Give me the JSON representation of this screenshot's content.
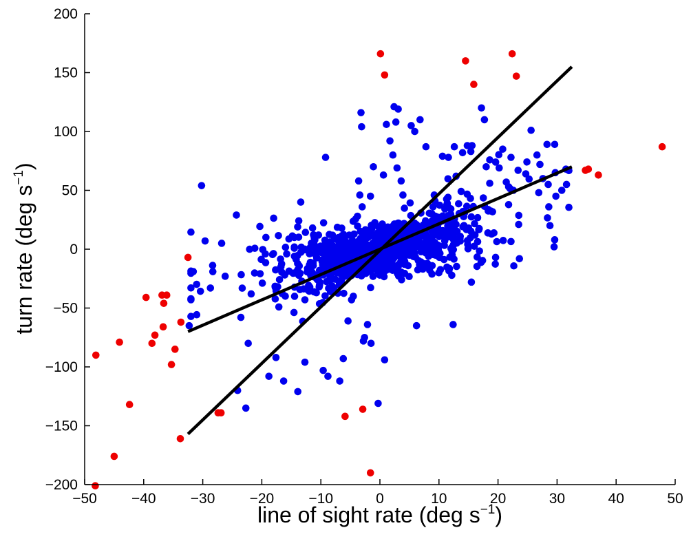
{
  "chart_data": {
    "type": "scatter",
    "title": "",
    "xlabel": {
      "main": "line of sight rate (deg s",
      "superscript": "−1",
      "close": ")"
    },
    "ylabel": {
      "main": "turn rate (deg s",
      "superscript": "−1",
      "close": ")"
    },
    "xlim": [
      -50,
      50
    ],
    "ylim": [
      -200,
      200
    ],
    "x_ticks": [
      -50,
      -40,
      -30,
      -20,
      -10,
      0,
      10,
      20,
      30,
      40,
      50
    ],
    "y_ticks": [
      -200,
      -150,
      -100,
      -50,
      0,
      50,
      100,
      150,
      200
    ],
    "x_tick_labels": [
      "−50",
      "−40",
      "−30",
      "−20",
      "−10",
      "0",
      "10",
      "20",
      "30",
      "40",
      "50"
    ],
    "y_tick_labels": [
      "−200",
      "−150",
      "−100",
      "−50",
      "0",
      "50",
      "100",
      "150",
      "200"
    ],
    "grid": false,
    "colors": {
      "included": "#0000ee",
      "outlier": "#ee0000",
      "fit": "#000000"
    },
    "series": [
      {
        "key": "included",
        "marker": "circle",
        "cluster_model": {
          "count": 1050,
          "core_slope": 1.5,
          "core_spread": [
            7.5,
            8.5
          ],
          "x_range": [
            -32,
            32
          ]
        },
        "points": [
          [
            -30.2,
            54
          ],
          [
            -29.6,
            7
          ],
          [
            -32.3,
            -65
          ],
          [
            -31.6,
            -19
          ],
          [
            -28.7,
            -33
          ],
          [
            -26.8,
            5
          ],
          [
            -26.2,
            -23
          ],
          [
            -24.3,
            29
          ],
          [
            -24.1,
            -120
          ],
          [
            -22.7,
            -135
          ],
          [
            -22.3,
            -80
          ],
          [
            -21.8,
            -38
          ],
          [
            -18.8,
            -108
          ],
          [
            -17.6,
            -92
          ],
          [
            -16.3,
            -112
          ],
          [
            -13.9,
            -121
          ],
          [
            -13.4,
            40
          ],
          [
            -12.7,
            -96
          ],
          [
            -11.4,
            18
          ],
          [
            -10.4,
            12
          ],
          [
            -9.2,
            78
          ],
          [
            -9.6,
            -103
          ],
          [
            -8.8,
            -108
          ],
          [
            -6.8,
            -112
          ],
          [
            -6.2,
            -93
          ],
          [
            -5.4,
            -61
          ],
          [
            -4.8,
            -43
          ],
          [
            -3.8,
            28
          ],
          [
            -3.6,
            58
          ],
          [
            -3.4,
            46
          ],
          [
            -3.3,
            5
          ],
          [
            -2.8,
            -78
          ],
          [
            -2.6,
            -75
          ],
          [
            -1.6,
            45
          ],
          [
            -1.1,
            70
          ],
          [
            -0.3,
            -131
          ],
          [
            0.8,
            -94
          ],
          [
            -3.2,
            116
          ],
          [
            -3.1,
            104
          ],
          [
            -2.1,
            -64
          ],
          [
            -3.0,
            36
          ],
          [
            -4.5,
            -40
          ],
          [
            -5.0,
            -20
          ],
          [
            -1.5,
            -80
          ],
          [
            0.6,
            63
          ],
          [
            1.1,
            106
          ],
          [
            1.7,
            92
          ],
          [
            2.4,
            121
          ],
          [
            3.1,
            119
          ],
          [
            2.7,
            108
          ],
          [
            2.2,
            80
          ],
          [
            2.9,
            69
          ],
          [
            3.6,
            58
          ],
          [
            3.9,
            46
          ],
          [
            5.3,
            105
          ],
          [
            5.9,
            100
          ],
          [
            6.8,
            110
          ],
          [
            6.2,
            -65
          ],
          [
            7.8,
            87
          ],
          [
            9.2,
            46
          ],
          [
            10.6,
            79
          ],
          [
            11.6,
            78
          ],
          [
            12.6,
            87
          ],
          [
            12.4,
            -64
          ],
          [
            12.9,
            62
          ],
          [
            14.0,
            82
          ],
          [
            14.8,
            88
          ],
          [
            15.6,
            88
          ],
          [
            15.4,
            83
          ],
          [
            17.2,
            120
          ],
          [
            17.7,
            110
          ],
          [
            18.6,
            56
          ],
          [
            19.6,
            74
          ],
          [
            20.2,
            69
          ],
          [
            21.4,
            57
          ],
          [
            21.8,
            53
          ],
          [
            22.6,
            50
          ],
          [
            23.4,
            67
          ],
          [
            23.5,
            21
          ],
          [
            25.6,
            101
          ],
          [
            26.6,
            80
          ],
          [
            27.1,
            72
          ],
          [
            28.3,
            89
          ],
          [
            28.5,
            55
          ],
          [
            28.6,
            36
          ],
          [
            28.8,
            20
          ],
          [
            29.6,
            89
          ],
          [
            29.7,
            65
          ],
          [
            29.8,
            45
          ],
          [
            30.8,
            50
          ],
          [
            29.6,
            8
          ],
          [
            29.5,
            2
          ],
          [
            31.5,
            68
          ],
          [
            31.6,
            55
          ],
          [
            26.9,
            48
          ],
          [
            27.6,
            60
          ],
          [
            24.7,
            64
          ],
          [
            22.2,
            78
          ],
          [
            20.8,
            85
          ],
          [
            18.0,
            70
          ]
        ]
      },
      {
        "key": "outlier",
        "marker": "circle",
        "points": [
          [
            -48.1,
            -90
          ],
          [
            -48.2,
            -201
          ],
          [
            -45.0,
            -176
          ],
          [
            -44.1,
            -79
          ],
          [
            -42.4,
            -132
          ],
          [
            -39.6,
            -41
          ],
          [
            -38.6,
            -80
          ],
          [
            -38.1,
            -73
          ],
          [
            -36.9,
            -39
          ],
          [
            -36.6,
            -46
          ],
          [
            -36.7,
            -66
          ],
          [
            -36.1,
            -39
          ],
          [
            -35.3,
            -98
          ],
          [
            -34.7,
            -85
          ],
          [
            -33.7,
            -62
          ],
          [
            -33.8,
            -161
          ],
          [
            -32.5,
            -7
          ],
          [
            -27.4,
            -139
          ],
          [
            -26.9,
            -139
          ],
          [
            -5.9,
            -142
          ],
          [
            -2.9,
            -136
          ],
          [
            -1.6,
            -190
          ],
          [
            0.1,
            166
          ],
          [
            0.8,
            148
          ],
          [
            14.5,
            160
          ],
          [
            15.9,
            140
          ],
          [
            22.4,
            166
          ],
          [
            23.1,
            147
          ],
          [
            34.8,
            67
          ],
          [
            35.3,
            68
          ],
          [
            37.0,
            63
          ],
          [
            47.8,
            87
          ]
        ]
      }
    ],
    "fit_lines": [
      {
        "key": "steep",
        "x": [
          -32.5,
          32.5
        ],
        "y": [
          -157,
          155
        ]
      },
      {
        "key": "shallow",
        "x": [
          -32.5,
          32.5
        ],
        "y": [
          -70,
          70
        ]
      }
    ]
  }
}
